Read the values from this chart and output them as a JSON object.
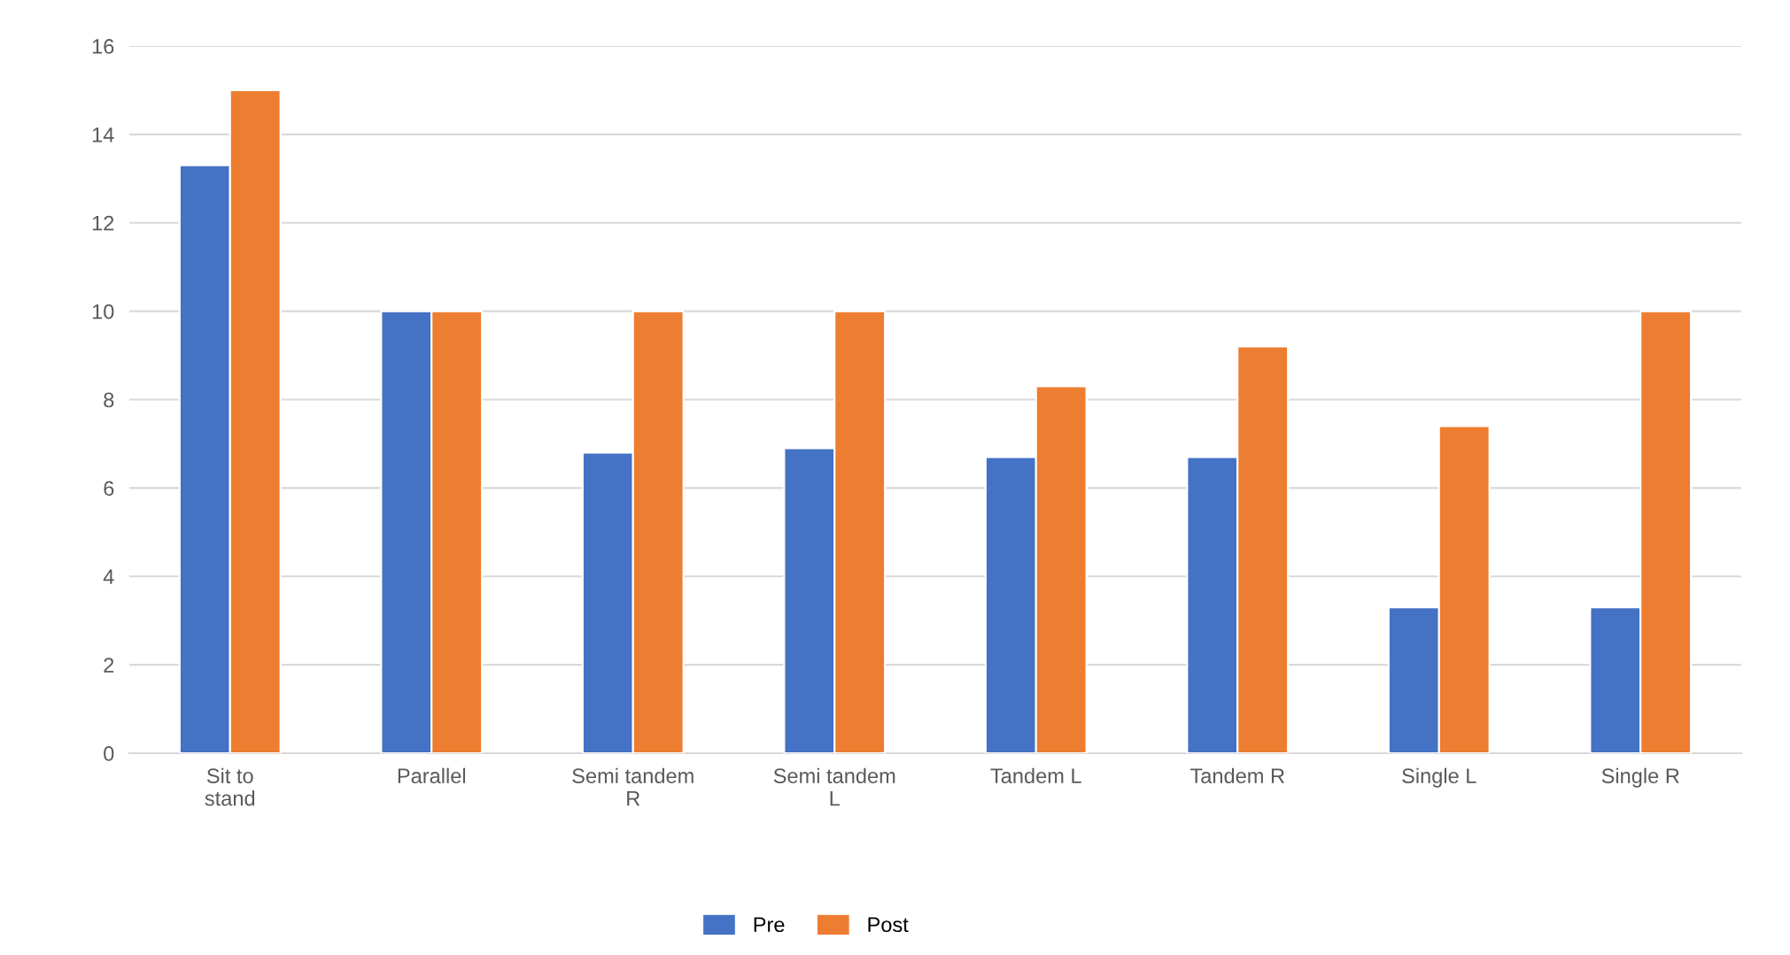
{
  "chart_data": {
    "type": "bar",
    "categories": [
      "Sit to stand",
      "Parallel",
      "Semi tandem R",
      "Semi tandem L",
      "Tandem L",
      "Tandem R",
      "Single L",
      "Single R"
    ],
    "series": [
      {
        "name": "Pre",
        "color": "#4472c4",
        "values": [
          13.3,
          10,
          6.8,
          6.9,
          6.7,
          6.7,
          3.3,
          3.3
        ]
      },
      {
        "name": "Post",
        "color": "#ed7d31",
        "values": [
          15,
          10,
          10,
          10,
          8.3,
          9.2,
          7.4,
          10
        ]
      }
    ],
    "ylim": [
      0,
      16
    ],
    "yticks": [
      0,
      2,
      4,
      6,
      8,
      10,
      12,
      14,
      16
    ],
    "grid": "y",
    "legend": "bottom"
  }
}
